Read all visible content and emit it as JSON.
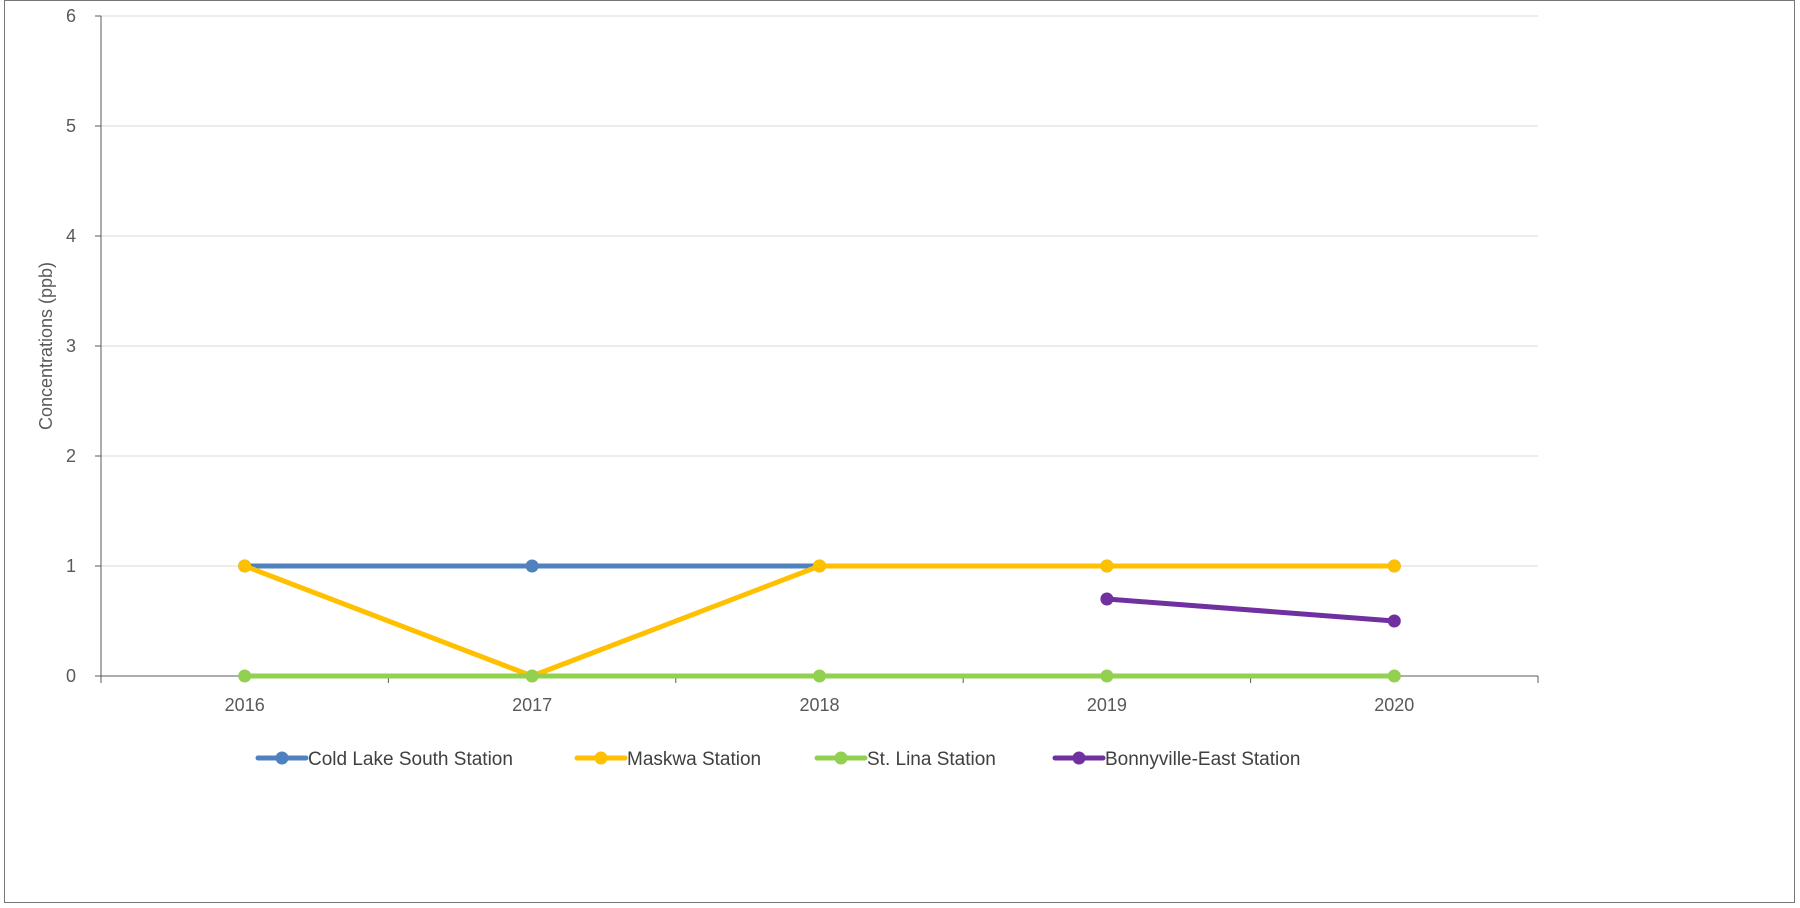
{
  "chart_data": {
    "type": "line",
    "title": "",
    "xlabel": "",
    "ylabel": "Concentrations (ppb)",
    "categories": [
      "2016",
      "2017",
      "2018",
      "2019",
      "2020"
    ],
    "ylim": [
      0,
      6
    ],
    "yticks": [
      "0",
      "1",
      "2",
      "3",
      "4",
      "5",
      "6"
    ],
    "grid": true,
    "legend_position": "bottom",
    "series": [
      {
        "name": "Cold Lake South Station",
        "color": "#4e81bd",
        "values": [
          1,
          1,
          1,
          1,
          1
        ]
      },
      {
        "name": "Maskwa Station",
        "color": "#ffc000",
        "values": [
          1,
          0,
          1,
          1,
          1
        ]
      },
      {
        "name": "St. Lina Station",
        "color": "#92d050",
        "values": [
          0,
          0,
          0,
          0,
          0
        ]
      },
      {
        "name": "Bonnyville-East Station",
        "color": "#7030a0",
        "values": [
          null,
          null,
          null,
          0.7,
          0.5
        ]
      }
    ]
  }
}
